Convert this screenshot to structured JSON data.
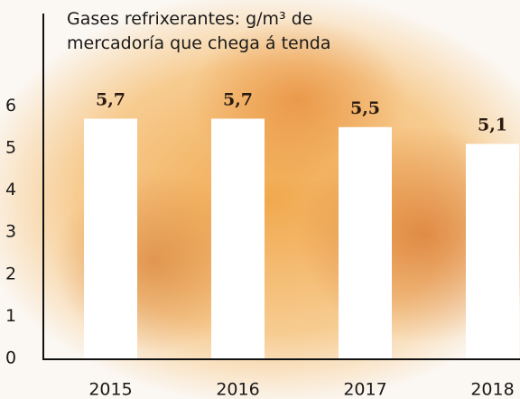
{
  "chart_data": {
    "type": "bar",
    "title": "Gases refrixerantes: g/m³ de mercadoría que chega á tenda",
    "categories": [
      "2015",
      "2016",
      "2017",
      "2018"
    ],
    "values": [
      5.7,
      5.7,
      5.5,
      5.1
    ],
    "value_labels": [
      "5,7",
      "5,7",
      "5,5",
      "5,1"
    ],
    "color": "#ffffff",
    "ylim": [
      0,
      8.2
    ],
    "yticks": [
      0,
      1,
      2,
      3,
      4,
      5,
      6
    ],
    "grid": false
  }
}
